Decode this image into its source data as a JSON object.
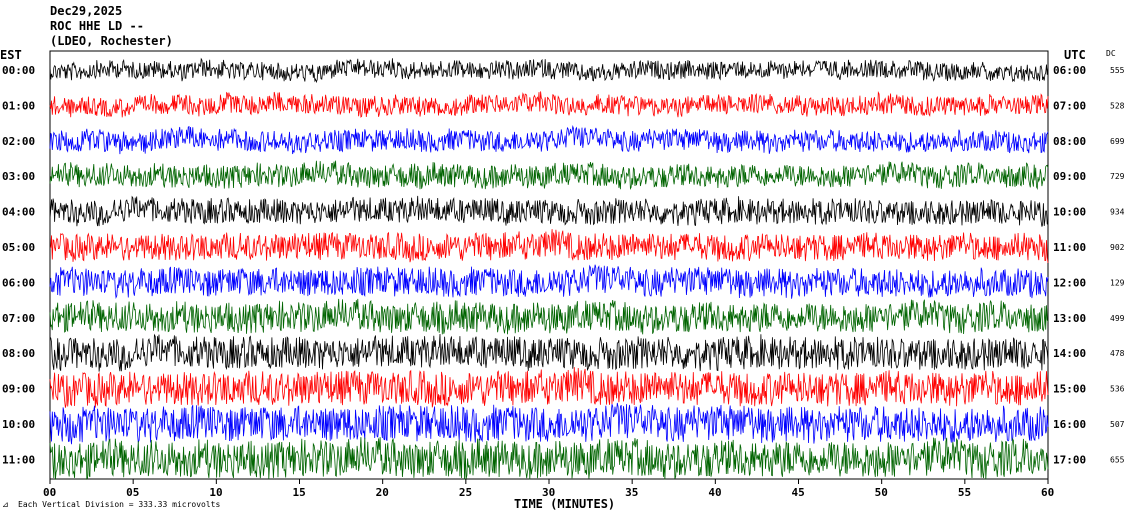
{
  "header": {
    "date": "Dec29,2025",
    "station": "ROC HHE LD --",
    "network": "(LDEO, Rochester)",
    "left_tz": "EST",
    "right_tz": "UTC",
    "dc_label": "DC"
  },
  "footer": {
    "scale_note": "Each Vertical Division =  333.33 microvolts",
    "xlabel": "TIME (MINUTES)"
  },
  "chart_data": {
    "type": "line",
    "title": "ROC HHE LD --",
    "xlabel": "TIME (MINUTES)",
    "xlim": [
      0,
      60
    ],
    "x_ticks": [
      "00",
      "05",
      "10",
      "15",
      "20",
      "25",
      "30",
      "35",
      "40",
      "45",
      "50",
      "55",
      "60"
    ],
    "trace_colors": [
      "#000000",
      "#ff0000",
      "#0000ff",
      "#006400"
    ],
    "rows": [
      {
        "est": "00:00",
        "utc": "06:00",
        "dc": "555"
      },
      {
        "est": "01:00",
        "utc": "07:00",
        "dc": "528"
      },
      {
        "est": "02:00",
        "utc": "08:00",
        "dc": "699"
      },
      {
        "est": "03:00",
        "utc": "09:00",
        "dc": "729"
      },
      {
        "est": "04:00",
        "utc": "10:00",
        "dc": "934"
      },
      {
        "est": "05:00",
        "utc": "11:00",
        "dc": "902"
      },
      {
        "est": "06:00",
        "utc": "12:00",
        "dc": "129"
      },
      {
        "est": "07:00",
        "utc": "13:00",
        "dc": "499"
      },
      {
        "est": "08:00",
        "utc": "14:00",
        "dc": "478"
      },
      {
        "est": "09:00",
        "utc": "15:00",
        "dc": "536"
      },
      {
        "est": "10:00",
        "utc": "16:00",
        "dc": "507"
      },
      {
        "est": "11:00",
        "utc": "17:00",
        "dc": "655"
      }
    ],
    "legend": "none",
    "grid": false
  }
}
